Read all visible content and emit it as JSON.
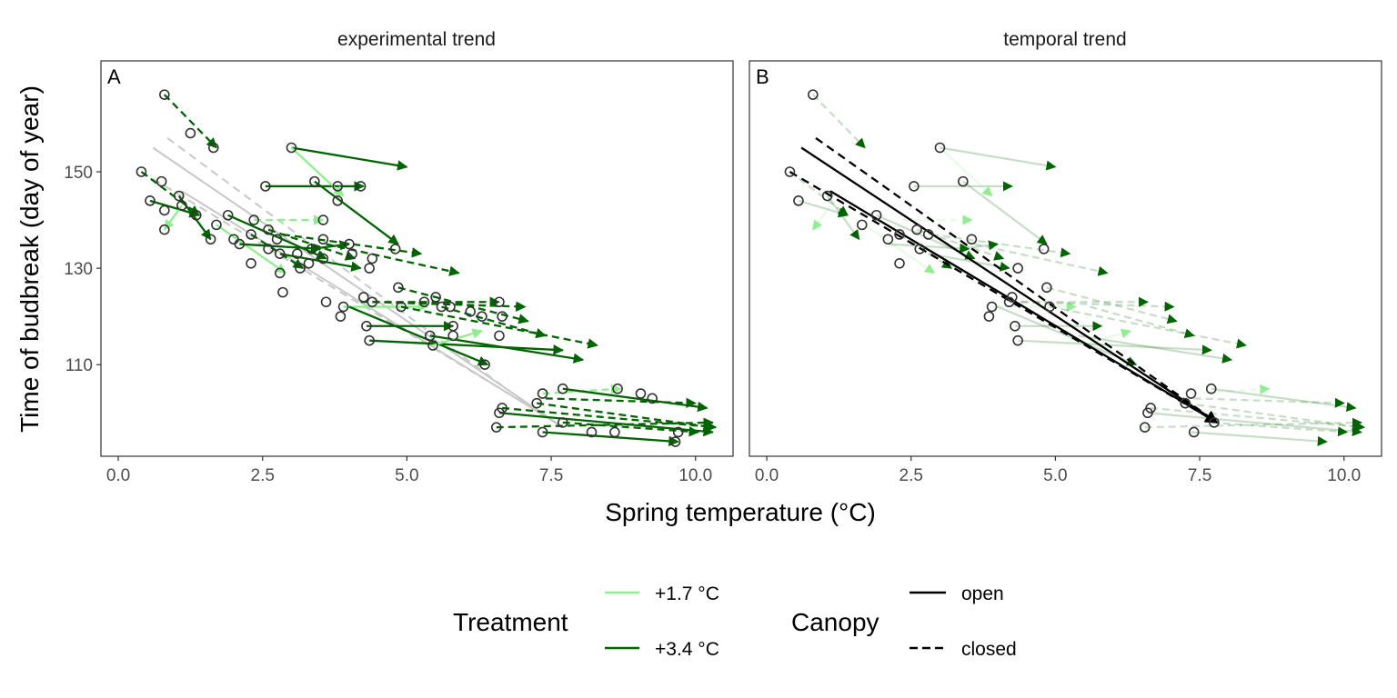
{
  "chart_data": {
    "type": "scatter",
    "facets": [
      "experimental trend",
      "temporal trend"
    ],
    "panel_letters": [
      "A",
      "B"
    ],
    "xlabel": "Spring temperature (°C)",
    "ylabel": "Time of budbreak (day of year)",
    "xlim": [
      -0.3,
      10.65
    ],
    "ylim": [
      91,
      173
    ],
    "xticks": [
      0.0,
      2.5,
      5.0,
      7.5,
      10.0
    ],
    "xtick_labels": [
      "0.0",
      "2.5",
      "5.0",
      "7.5",
      "10.0"
    ],
    "yticks": [
      110,
      130,
      150
    ],
    "ytick_labels": [
      "110",
      "130",
      "150"
    ],
    "legend": {
      "treatment_title": "Treatment",
      "treatment_items": [
        {
          "label": "+1.7 °C",
          "color": "#90ee90"
        },
        {
          "label": "+3.4 °C",
          "color": "#006400"
        }
      ],
      "canopy_title": "Canopy",
      "canopy_items": [
        {
          "label": "open",
          "dash": "solid"
        },
        {
          "label": "closed",
          "dash": "dashed"
        }
      ]
    },
    "controls": [
      [
        0.8,
        166
      ],
      [
        1.25,
        158
      ],
      [
        1.65,
        155
      ],
      [
        0.4,
        150
      ],
      [
        0.75,
        148
      ],
      [
        0.8,
        142
      ],
      [
        0.55,
        144
      ],
      [
        1.05,
        145
      ],
      [
        1.1,
        143
      ],
      [
        0.8,
        138
      ],
      [
        1.35,
        141
      ],
      [
        1.6,
        136
      ],
      [
        1.7,
        139
      ],
      [
        1.9,
        141
      ],
      [
        2.0,
        136
      ],
      [
        2.1,
        135
      ],
      [
        2.3,
        137
      ],
      [
        2.35,
        140
      ],
      [
        2.3,
        131
      ],
      [
        2.55,
        147
      ],
      [
        2.6,
        138
      ],
      [
        2.6,
        134
      ],
      [
        2.75,
        136
      ],
      [
        2.8,
        133
      ],
      [
        2.8,
        129
      ],
      [
        2.85,
        125
      ],
      [
        3.0,
        155
      ],
      [
        3.1,
        133
      ],
      [
        3.15,
        130
      ],
      [
        3.3,
        131
      ],
      [
        3.35,
        134
      ],
      [
        3.4,
        148
      ],
      [
        3.55,
        140
      ],
      [
        3.55,
        136
      ],
      [
        3.55,
        132
      ],
      [
        3.6,
        123
      ],
      [
        3.8,
        147
      ],
      [
        3.8,
        144
      ],
      [
        3.85,
        120
      ],
      [
        3.9,
        122
      ],
      [
        4.0,
        135
      ],
      [
        4.05,
        133
      ],
      [
        4.2,
        147
      ],
      [
        4.25,
        124
      ],
      [
        4.3,
        118
      ],
      [
        4.35,
        130
      ],
      [
        4.35,
        115
      ],
      [
        4.4,
        123
      ],
      [
        4.4,
        132
      ],
      [
        4.8,
        134
      ],
      [
        4.85,
        126
      ],
      [
        4.9,
        122
      ],
      [
        5.3,
        123
      ],
      [
        5.4,
        116
      ],
      [
        5.45,
        114
      ],
      [
        5.5,
        124
      ],
      [
        5.6,
        122
      ],
      [
        5.75,
        122
      ],
      [
        5.8,
        118
      ],
      [
        5.8,
        116
      ],
      [
        6.1,
        121
      ],
      [
        6.3,
        120
      ],
      [
        6.35,
        110
      ],
      [
        6.6,
        123
      ],
      [
        6.6,
        116
      ],
      [
        6.65,
        120
      ],
      [
        6.55,
        97
      ],
      [
        6.6,
        100
      ],
      [
        6.65,
        101
      ],
      [
        7.25,
        102
      ],
      [
        7.35,
        104
      ],
      [
        7.35,
        96
      ],
      [
        7.7,
        105
      ],
      [
        7.7,
        98
      ],
      [
        8.2,
        96
      ],
      [
        8.6,
        96
      ],
      [
        8.65,
        105
      ],
      [
        9.05,
        104
      ],
      [
        9.25,
        103
      ],
      [
        9.65,
        94
      ],
      [
        9.7,
        96
      ]
    ],
    "experimental_arrows": [
      {
        "from": [
          0.8,
          166
        ],
        "to": [
          1.7,
          155
        ],
        "treatment": "+3.4 °C",
        "canopy": "closed"
      },
      {
        "from": [
          0.4,
          150
        ],
        "to": [
          1.4,
          141
        ],
        "treatment": "+3.4 °C",
        "canopy": "closed"
      },
      {
        "from": [
          0.55,
          144
        ],
        "to": [
          1.4,
          141
        ],
        "treatment": "+3.4 °C",
        "canopy": "open"
      },
      {
        "from": [
          1.1,
          143
        ],
        "to": [
          0.8,
          138
        ],
        "treatment": "+1.7 °C",
        "canopy": "open"
      },
      {
        "from": [
          1.05,
          145
        ],
        "to": [
          1.6,
          136
        ],
        "treatment": "+3.4 °C",
        "canopy": "open"
      },
      {
        "from": [
          1.7,
          139
        ],
        "to": [
          2.9,
          129
        ],
        "treatment": "+1.7 °C",
        "canopy": "open"
      },
      {
        "from": [
          1.9,
          141
        ],
        "to": [
          3.6,
          132
        ],
        "treatment": "+3.4 °C",
        "canopy": "open"
      },
      {
        "from": [
          2.1,
          135
        ],
        "to": [
          3.5,
          134
        ],
        "treatment": "+3.4 °C",
        "canopy": "open"
      },
      {
        "from": [
          2.3,
          137
        ],
        "to": [
          3.2,
          130
        ],
        "treatment": "+3.4 °C",
        "canopy": "closed"
      },
      {
        "from": [
          2.35,
          140
        ],
        "to": [
          3.55,
          140
        ],
        "treatment": "+1.7 °C",
        "canopy": "closed"
      },
      {
        "from": [
          2.6,
          138
        ],
        "to": [
          4.1,
          132
        ],
        "treatment": "+3.4 °C",
        "canopy": "closed"
      },
      {
        "from": [
          2.55,
          147
        ],
        "to": [
          4.25,
          147
        ],
        "treatment": "+3.4 °C",
        "canopy": "open"
      },
      {
        "from": [
          2.8,
          133
        ],
        "to": [
          4.2,
          130
        ],
        "treatment": "+3.4 °C",
        "canopy": "open"
      },
      {
        "from": [
          2.85,
          137
        ],
        "to": [
          5.25,
          133
        ],
        "treatment": "+3.4 °C",
        "canopy": "closed"
      },
      {
        "from": [
          3.0,
          155
        ],
        "to": [
          5.0,
          151
        ],
        "treatment": "+3.4 °C",
        "canopy": "open"
      },
      {
        "from": [
          3.0,
          155
        ],
        "to": [
          3.9,
          145
        ],
        "treatment": "+1.7 °C",
        "canopy": "open"
      },
      {
        "from": [
          3.35,
          134
        ],
        "to": [
          4.0,
          135
        ],
        "treatment": "+3.4 °C",
        "canopy": "open"
      },
      {
        "from": [
          3.4,
          148
        ],
        "to": [
          4.85,
          135
        ],
        "treatment": "+3.4 °C",
        "canopy": "open"
      },
      {
        "from": [
          3.6,
          135
        ],
        "to": [
          5.9,
          129
        ],
        "treatment": "+3.4 °C",
        "canopy": "closed"
      },
      {
        "from": [
          3.9,
          122
        ],
        "to": [
          5.35,
          122
        ],
        "treatment": "+1.7 °C",
        "canopy": "open"
      },
      {
        "from": [
          4.0,
          122
        ],
        "to": [
          6.4,
          110
        ],
        "treatment": "+3.4 °C",
        "canopy": "open"
      },
      {
        "from": [
          4.2,
          123
        ],
        "to": [
          6.6,
          123
        ],
        "treatment": "+3.4 °C",
        "canopy": "closed"
      },
      {
        "from": [
          4.3,
          118
        ],
        "to": [
          5.8,
          118
        ],
        "treatment": "+3.4 °C",
        "canopy": "open"
      },
      {
        "from": [
          4.35,
          115
        ],
        "to": [
          7.7,
          113
        ],
        "treatment": "+3.4 °C",
        "canopy": "open"
      },
      {
        "from": [
          4.4,
          123
        ],
        "to": [
          7.05,
          122
        ],
        "treatment": "+3.4 °C",
        "canopy": "closed"
      },
      {
        "from": [
          4.85,
          126
        ],
        "to": [
          7.1,
          119
        ],
        "treatment": "+3.4 °C",
        "canopy": "closed"
      },
      {
        "from": [
          4.9,
          122
        ],
        "to": [
          8.3,
          114
        ],
        "treatment": "+3.4 °C",
        "canopy": "closed"
      },
      {
        "from": [
          5.4,
          116
        ],
        "to": [
          8.05,
          111
        ],
        "treatment": "+3.4 °C",
        "canopy": "open"
      },
      {
        "from": [
          5.45,
          114
        ],
        "to": [
          6.3,
          117
        ],
        "treatment": "+1.7 °C",
        "canopy": "open"
      },
      {
        "from": [
          5.6,
          122
        ],
        "to": [
          7.4,
          116
        ],
        "treatment": "+3.4 °C",
        "canopy": "closed"
      },
      {
        "from": [
          6.55,
          97
        ],
        "to": [
          10.3,
          98
        ],
        "treatment": "+3.4 °C",
        "canopy": "closed"
      },
      {
        "from": [
          6.6,
          100
        ],
        "to": [
          10.3,
          96
        ],
        "treatment": "+3.4 °C",
        "canopy": "open"
      },
      {
        "from": [
          6.65,
          101
        ],
        "to": [
          10.35,
          97
        ],
        "treatment": "+3.4 °C",
        "canopy": "closed"
      },
      {
        "from": [
          7.25,
          102
        ],
        "to": [
          10.3,
          97
        ],
        "treatment": "+3.4 °C",
        "canopy": "closed"
      },
      {
        "from": [
          7.35,
          104
        ],
        "to": [
          8.7,
          105
        ],
        "treatment": "+1.7 °C",
        "canopy": "closed"
      },
      {
        "from": [
          7.35,
          96
        ],
        "to": [
          9.7,
          94
        ],
        "treatment": "+3.4 °C",
        "canopy": "open"
      },
      {
        "from": [
          7.7,
          105
        ],
        "to": [
          10.2,
          101
        ],
        "treatment": "+3.4 °C",
        "canopy": "open"
      },
      {
        "from": [
          7.7,
          98
        ],
        "to": [
          10.05,
          96
        ],
        "treatment": "+3.4 °C",
        "canopy": "closed"
      },
      {
        "from": [
          7.4,
          103
        ],
        "to": [
          10.0,
          102
        ],
        "treatment": "+3.4 °C",
        "canopy": "closed"
      }
    ],
    "experimental_fits": [
      {
        "canopy": "open",
        "from": [
          0.6,
          155
        ],
        "to": [
          7.7,
          97
        ]
      },
      {
        "canopy": "closed",
        "from": [
          0.85,
          157
        ],
        "to": [
          7.4,
          99
        ]
      },
      {
        "canopy": "open",
        "from": [
          1.1,
          146
        ],
        "to": [
          7.7,
          97
        ]
      },
      {
        "canopy": "closed",
        "from": [
          0.4,
          150
        ],
        "to": [
          7.45,
          99
        ]
      }
    ],
    "temporal_controls": [
      [
        0.8,
        166
      ],
      [
        0.4,
        150
      ],
      [
        0.55,
        144
      ],
      [
        1.05,
        145
      ],
      [
        1.65,
        139
      ],
      [
        1.9,
        141
      ],
      [
        2.1,
        136
      ],
      [
        2.3,
        131
      ],
      [
        2.3,
        137
      ],
      [
        2.55,
        147
      ],
      [
        2.6,
        138
      ],
      [
        2.65,
        134
      ],
      [
        2.8,
        137
      ],
      [
        3.0,
        155
      ],
      [
        3.4,
        148
      ],
      [
        3.55,
        136
      ],
      [
        3.85,
        120
      ],
      [
        3.9,
        122
      ],
      [
        4.2,
        123
      ],
      [
        4.25,
        124
      ],
      [
        4.3,
        118
      ],
      [
        4.35,
        130
      ],
      [
        4.35,
        115
      ],
      [
        4.8,
        134
      ],
      [
        4.85,
        126
      ],
      [
        4.9,
        122
      ],
      [
        6.55,
        97
      ],
      [
        6.6,
        100
      ],
      [
        6.65,
        101
      ],
      [
        7.25,
        102
      ],
      [
        7.35,
        104
      ],
      [
        7.4,
        96
      ],
      [
        7.7,
        105
      ],
      [
        7.75,
        98
      ]
    ],
    "temporal_fits": [
      {
        "canopy": "open",
        "from": [
          0.6,
          155
        ],
        "to": [
          7.8,
          98
        ]
      },
      {
        "canopy": "closed",
        "from": [
          0.85,
          157
        ],
        "to": [
          7.8,
          98
        ]
      },
      {
        "canopy": "open",
        "from": [
          1.1,
          146
        ],
        "to": [
          7.8,
          98
        ]
      },
      {
        "canopy": "closed",
        "from": [
          0.4,
          150
        ],
        "to": [
          7.8,
          98
        ]
      }
    ]
  }
}
